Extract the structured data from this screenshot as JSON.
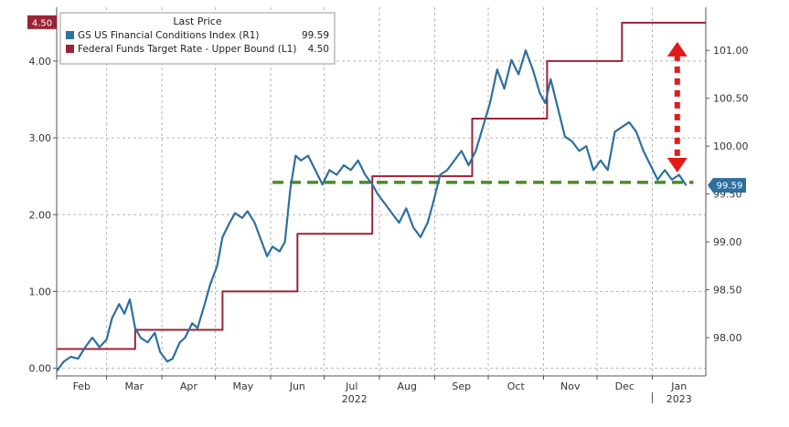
{
  "chart_data": {
    "type": "line",
    "title": "",
    "legend": {
      "title": "Last Price",
      "placement": "top-left",
      "entries": [
        {
          "label": "GS US Financial Conditions Index  (R1)",
          "value": "99.59",
          "color": "#2e6f9e"
        },
        {
          "label": "Federal Funds Target Rate - Upper Bound  (L1)",
          "value": "4.50",
          "color": "#9b2335"
        }
      ]
    },
    "left_axis": {
      "ticks": [
        "0.00",
        "1.00",
        "2.00",
        "3.00",
        "4.00"
      ],
      "range": [
        -0.1,
        4.7
      ]
    },
    "right_axis": {
      "ticks": [
        "98.00",
        "98.50",
        "99.00",
        "99.50",
        "100.00",
        "100.50",
        "101.00"
      ],
      "range": [
        97.6,
        101.45
      ]
    },
    "x_axis": {
      "months": [
        "Feb",
        "Mar",
        "Apr",
        "May",
        "Jun",
        "Jul",
        "Aug",
        "Sep",
        "Oct",
        "Nov",
        "Dec",
        "Jan"
      ],
      "years": [
        "2022",
        "2023"
      ],
      "range": [
        "2022-02-01",
        "2023-01-31"
      ]
    },
    "grid": true,
    "last_value_flags": {
      "left": "4.50",
      "right": "99.59"
    },
    "series": [
      {
        "name": "Federal Funds Target Rate - Upper Bound",
        "axis": "left",
        "color": "#9b2335",
        "step": true,
        "points": [
          [
            "2022-02-01",
            0.25
          ],
          [
            "2022-03-17",
            0.5
          ],
          [
            "2022-05-05",
            1.0
          ],
          [
            "2022-06-16",
            1.75
          ],
          [
            "2022-07-28",
            2.5
          ],
          [
            "2022-09-22",
            3.25
          ],
          [
            "2022-11-03",
            4.0
          ],
          [
            "2022-12-15",
            4.5
          ],
          [
            "2023-01-31",
            4.5
          ]
        ]
      },
      {
        "name": "GS US Financial Conditions Index",
        "axis": "right",
        "color": "#2e6f9e",
        "step": false,
        "points": [
          [
            "2022-02-01",
            97.65
          ],
          [
            "2022-02-05",
            97.75
          ],
          [
            "2022-02-09",
            97.8
          ],
          [
            "2022-02-13",
            97.78
          ],
          [
            "2022-02-17",
            97.9
          ],
          [
            "2022-02-21",
            98.0
          ],
          [
            "2022-02-25",
            97.9
          ],
          [
            "2022-03-01",
            97.98
          ],
          [
            "2022-03-04",
            98.2
          ],
          [
            "2022-03-08",
            98.35
          ],
          [
            "2022-03-11",
            98.25
          ],
          [
            "2022-03-14",
            98.4
          ],
          [
            "2022-03-17",
            98.1
          ],
          [
            "2022-03-20",
            98.0
          ],
          [
            "2022-03-24",
            97.95
          ],
          [
            "2022-03-28",
            98.05
          ],
          [
            "2022-03-31",
            97.85
          ],
          [
            "2022-04-04",
            97.75
          ],
          [
            "2022-04-07",
            97.78
          ],
          [
            "2022-04-11",
            97.95
          ],
          [
            "2022-04-14",
            98.0
          ],
          [
            "2022-04-18",
            98.15
          ],
          [
            "2022-04-21",
            98.1
          ],
          [
            "2022-04-25",
            98.35
          ],
          [
            "2022-04-28",
            98.55
          ],
          [
            "2022-05-02",
            98.75
          ],
          [
            "2022-05-05",
            99.05
          ],
          [
            "2022-05-09",
            99.2
          ],
          [
            "2022-05-12",
            99.3
          ],
          [
            "2022-05-16",
            99.25
          ],
          [
            "2022-05-19",
            99.32
          ],
          [
            "2022-05-23",
            99.2
          ],
          [
            "2022-05-26",
            99.05
          ],
          [
            "2022-05-30",
            98.85
          ],
          [
            "2022-06-02",
            98.95
          ],
          [
            "2022-06-06",
            98.9
          ],
          [
            "2022-06-09",
            99.0
          ],
          [
            "2022-06-12",
            99.55
          ],
          [
            "2022-06-15",
            99.9
          ],
          [
            "2022-06-18",
            99.85
          ],
          [
            "2022-06-22",
            99.9
          ],
          [
            "2022-06-26",
            99.75
          ],
          [
            "2022-06-30",
            99.6
          ],
          [
            "2022-07-04",
            99.75
          ],
          [
            "2022-07-08",
            99.7
          ],
          [
            "2022-07-12",
            99.8
          ],
          [
            "2022-07-16",
            99.75
          ],
          [
            "2022-07-20",
            99.85
          ],
          [
            "2022-07-24",
            99.7
          ],
          [
            "2022-07-28",
            99.6
          ],
          [
            "2022-07-31",
            99.5
          ],
          [
            "2022-08-04",
            99.4
          ],
          [
            "2022-08-08",
            99.3
          ],
          [
            "2022-08-12",
            99.2
          ],
          [
            "2022-08-16",
            99.35
          ],
          [
            "2022-08-20",
            99.15
          ],
          [
            "2022-08-24",
            99.05
          ],
          [
            "2022-08-28",
            99.2
          ],
          [
            "2022-08-31",
            99.4
          ],
          [
            "2022-09-04",
            99.7
          ],
          [
            "2022-09-08",
            99.75
          ],
          [
            "2022-09-12",
            99.85
          ],
          [
            "2022-09-16",
            99.95
          ],
          [
            "2022-09-20",
            99.8
          ],
          [
            "2022-09-24",
            99.95
          ],
          [
            "2022-09-28",
            100.2
          ],
          [
            "2022-10-02",
            100.45
          ],
          [
            "2022-10-06",
            100.8
          ],
          [
            "2022-10-10",
            100.6
          ],
          [
            "2022-10-14",
            100.9
          ],
          [
            "2022-10-18",
            100.75
          ],
          [
            "2022-10-22",
            101.0
          ],
          [
            "2022-10-26",
            100.8
          ],
          [
            "2022-10-30",
            100.55
          ],
          [
            "2022-11-02",
            100.45
          ],
          [
            "2022-11-05",
            100.7
          ],
          [
            "2022-11-09",
            100.4
          ],
          [
            "2022-11-13",
            100.1
          ],
          [
            "2022-11-17",
            100.05
          ],
          [
            "2022-11-21",
            99.95
          ],
          [
            "2022-11-25",
            100.0
          ],
          [
            "2022-11-29",
            99.75
          ],
          [
            "2022-12-03",
            99.85
          ],
          [
            "2022-12-07",
            99.75
          ],
          [
            "2022-12-11",
            100.15
          ],
          [
            "2022-12-15",
            100.2
          ],
          [
            "2022-12-19",
            100.25
          ],
          [
            "2022-12-23",
            100.15
          ],
          [
            "2022-12-27",
            99.95
          ],
          [
            "2022-12-31",
            99.8
          ],
          [
            "2023-01-04",
            99.65
          ],
          [
            "2023-01-08",
            99.75
          ],
          [
            "2023-01-12",
            99.65
          ],
          [
            "2023-01-16",
            99.7
          ],
          [
            "2023-01-20",
            99.59
          ]
        ]
      }
    ],
    "annotations": [
      {
        "type": "dashed-horizontal-line",
        "axis": "left",
        "y": 2.42,
        "x_from": "2022-06-02",
        "x_to": "2023-01-20",
        "color": "#4c8a2c"
      },
      {
        "type": "dotted-double-arrow",
        "axis": "left",
        "x": "2023-01-15",
        "y_from": 2.55,
        "y_to": 4.25,
        "color": "#e21a1a"
      }
    ]
  }
}
